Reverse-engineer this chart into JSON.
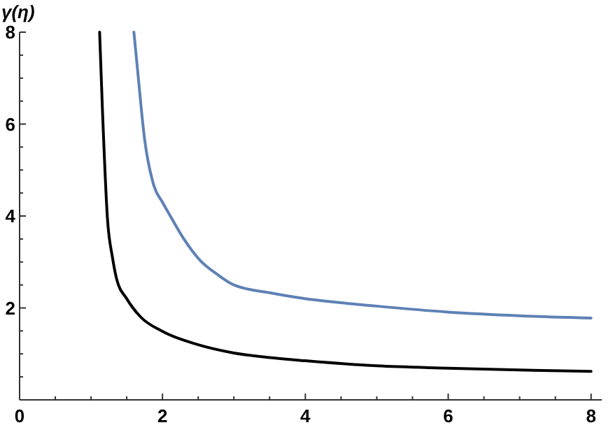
{
  "chart_data": {
    "type": "line",
    "ylabel": "γ(η)",
    "xlim": [
      0,
      8.15
    ],
    "ylim": [
      0,
      8
    ],
    "xticks": [
      0,
      {
        "value": 0.5,
        "label": null
      },
      {
        "value": 1,
        "label": null
      },
      {
        "value": 1.5,
        "label": null
      },
      2,
      {
        "value": 2.5,
        "label": null
      },
      {
        "value": 3,
        "label": null
      },
      {
        "value": 3.5,
        "label": null
      },
      4,
      {
        "value": 4.5,
        "label": null
      },
      {
        "value": 5,
        "label": null
      },
      {
        "value": 5.5,
        "label": null
      },
      6,
      {
        "value": 6.5,
        "label": null
      },
      {
        "value": 7,
        "label": null
      },
      {
        "value": 7.5,
        "label": null
      },
      8
    ],
    "yticks": [
      {
        "value": 0.5,
        "label": null
      },
      {
        "value": 1,
        "label": null
      },
      {
        "value": 1.5,
        "label": null
      },
      2,
      {
        "value": 2.5,
        "label": null
      },
      {
        "value": 3,
        "label": null
      },
      {
        "value": 3.5,
        "label": null
      },
      4,
      {
        "value": 4.5,
        "label": null
      },
      {
        "value": 5,
        "label": null
      },
      {
        "value": 5.5,
        "label": null
      },
      6,
      {
        "value": 6.5,
        "label": null
      },
      {
        "value": 7,
        "label": null
      },
      {
        "value": 7.5,
        "label": null
      },
      8
    ],
    "grid": false,
    "line_style": "solid",
    "series": [
      {
        "color": "#000000",
        "x": [
          1.12,
          1.16,
          1.23,
          1.3,
          1.36,
          1.5,
          1.69,
          2,
          2.5,
          3,
          3.5,
          4,
          5,
          6,
          7,
          8
        ],
        "values": [
          8,
          6.3,
          3.94,
          3.1,
          2.62,
          2.2,
          1.81,
          1.49,
          1.2,
          1.02,
          0.92,
          0.85,
          0.74,
          0.69,
          0.65,
          0.62
        ]
      },
      {
        "color": "#5e81b5",
        "x": [
          1.6,
          1.65,
          1.75,
          1.88,
          2,
          2.11,
          2.3,
          2.53,
          2.75,
          3,
          3.5,
          4,
          5,
          6,
          7,
          8
        ],
        "values": [
          8,
          7.2,
          5.67,
          4.66,
          4.3,
          4,
          3.5,
          3.03,
          2.75,
          2.5,
          2.33,
          2.2,
          2.04,
          1.91,
          1.83,
          1.78
        ]
      }
    ]
  }
}
